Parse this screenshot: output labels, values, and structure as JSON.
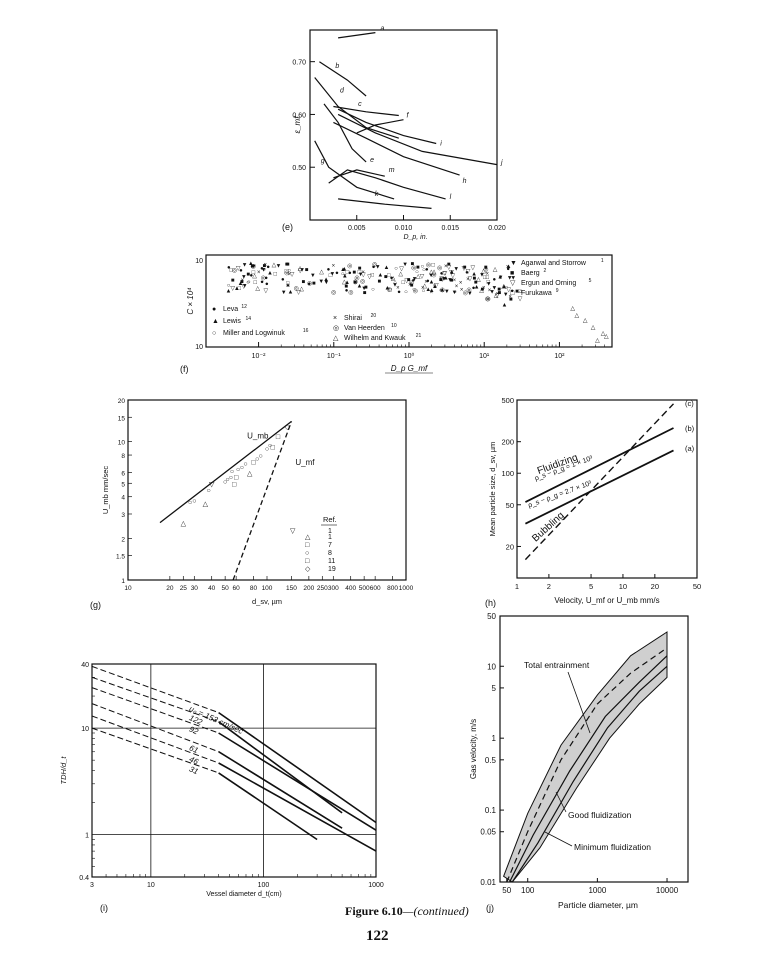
{
  "figure_caption": {
    "label": "Figure 6.10",
    "suffix": "—(continued)"
  },
  "page_number": "122",
  "chart_data": [
    {
      "id": "e",
      "panel_label": "(e)",
      "type": "line",
      "ylabel": "ε_mf",
      "xlabel": "D_p, in.",
      "xlim": [
        0,
        0.02
      ],
      "ylim": [
        0.4,
        0.76
      ],
      "xticks": [
        "0.005",
        "0.010",
        "0.015",
        "0.020"
      ],
      "yticks": [
        "0.50",
        "0.60",
        "0.70"
      ],
      "series": [
        {
          "name": "a",
          "points": [
            [
              0.003,
              0.745
            ],
            [
              0.007,
              0.755
            ]
          ]
        },
        {
          "name": "b",
          "points": [
            [
              0.001,
              0.7
            ],
            [
              0.004,
              0.665
            ],
            [
              0.006,
              0.635
            ]
          ]
        },
        {
          "name": "c",
          "points": [
            [
              0.0025,
              0.615
            ],
            [
              0.006,
              0.605
            ],
            [
              0.0095,
              0.598
            ]
          ]
        },
        {
          "name": "d",
          "points": [
            [
              0.0005,
              0.67
            ],
            [
              0.003,
              0.615
            ],
            [
              0.006,
              0.575
            ],
            [
              0.0095,
              0.555
            ]
          ]
        },
        {
          "name": "e",
          "points": [
            [
              0.0015,
              0.62
            ],
            [
              0.003,
              0.585
            ],
            [
              0.0045,
              0.535
            ],
            [
              0.006,
              0.51
            ]
          ]
        },
        {
          "name": "f",
          "points": [
            [
              0.005,
              0.565
            ],
            [
              0.007,
              0.58
            ],
            [
              0.01,
              0.59
            ]
          ]
        },
        {
          "name": "g",
          "points": [
            [
              0.0005,
              0.55
            ],
            [
              0.002,
              0.5
            ],
            [
              0.005,
              0.462
            ],
            [
              0.009,
              0.44
            ]
          ]
        },
        {
          "name": "h",
          "points": [
            [
              0.0025,
              0.585
            ],
            [
              0.006,
              0.555
            ],
            [
              0.01,
              0.52
            ],
            [
              0.016,
              0.485
            ]
          ]
        },
        {
          "name": "i",
          "points": [
            [
              0.003,
              0.61
            ],
            [
              0.006,
              0.585
            ],
            [
              0.01,
              0.56
            ],
            [
              0.0135,
              0.545
            ]
          ]
        },
        {
          "name": "j",
          "points": [
            [
              0.003,
              0.6
            ],
            [
              0.007,
              0.565
            ],
            [
              0.012,
              0.53
            ],
            [
              0.02,
              0.505
            ]
          ]
        },
        {
          "name": "k",
          "points": [
            [
              0.003,
              0.44
            ],
            [
              0.008,
              0.43
            ],
            [
              0.013,
              0.422
            ]
          ]
        },
        {
          "name": "l",
          "points": [
            [
              0.002,
              0.47
            ],
            [
              0.004,
              0.495
            ],
            [
              0.007,
              0.48
            ],
            [
              0.01,
              0.462
            ],
            [
              0.0145,
              0.44
            ]
          ]
        },
        {
          "name": "m",
          "points": [
            [
              0.0025,
              0.48
            ],
            [
              0.005,
              0.495
            ],
            [
              0.008,
              0.483
            ]
          ]
        }
      ]
    },
    {
      "id": "f",
      "panel_label": "(f)",
      "type": "scatter",
      "ylabel": "C × 10⁴",
      "xlabel": "D_p G_mf",
      "xscale": "log",
      "xlim": [
        0.002,
        500
      ],
      "ylim": [
        1,
        10
      ],
      "xticks": [
        "10⁻²",
        "10⁻¹",
        "10⁰",
        "10¹",
        "10²"
      ],
      "yticks": [
        "10",
        "10"
      ],
      "legend": [
        {
          "symbol": "●",
          "text": "Leva",
          "ref": "12"
        },
        {
          "symbol": "▲",
          "text": "Lewis",
          "ref": "14"
        },
        {
          "symbol": "○",
          "text": "Miller and Logwinuk",
          "ref": "16"
        },
        {
          "symbol": "×",
          "text": "Shirai",
          "ref": "20"
        },
        {
          "symbol": "◎",
          "text": "Van Heerden",
          "ref": "10"
        },
        {
          "symbol": "△",
          "text": "Wilhelm and Kwauk",
          "ref": "21"
        },
        {
          "symbol": "▼",
          "text": "Agarwal and Storrow",
          "ref": "1"
        },
        {
          "symbol": "■",
          "text": "Baerg",
          "ref": "2"
        },
        {
          "symbol": "▽",
          "text": "Ergun and Orning",
          "ref": "5"
        },
        {
          "symbol": "□",
          "text": "Furukawa",
          "ref": "9"
        }
      ]
    },
    {
      "id": "g",
      "panel_label": "(g)",
      "type": "scatter",
      "ylabel": "U_mb mm/sec",
      "xlabel": "d_sv, µm",
      "xscale": "log",
      "yscale": "log",
      "xlim": [
        10,
        1000
      ],
      "ylim": [
        1,
        20
      ],
      "xticks": [
        "10",
        "20",
        "25",
        "30",
        "40",
        "50",
        "60",
        "80",
        "100",
        "150",
        "200",
        "250",
        "300",
        "400",
        "500",
        "600",
        "800",
        "1000"
      ],
      "yticks": [
        "1",
        "1.5",
        "2",
        "3",
        "4",
        "5",
        "6",
        "8",
        "10",
        "15",
        "20"
      ],
      "line_labels": [
        "U_mb",
        "U_mf"
      ],
      "lines": {
        "U_mb": [
          [
            17,
            2.6
          ],
          [
            150,
            14
          ]
        ],
        "U_mf": [
          [
            57,
            1
          ],
          [
            150,
            14
          ]
        ]
      },
      "legend_title": "Ref.",
      "legend": [
        {
          "symbol": "▽",
          "ref": "1"
        },
        {
          "symbol": "△",
          "ref": "1"
        },
        {
          "symbol": "□",
          "ref": "7"
        },
        {
          "symbol": "○",
          "ref": "8"
        },
        {
          "symbol": "□",
          "ref": "11"
        },
        {
          "symbol": "◇",
          "ref": "19"
        }
      ],
      "points": [
        {
          "x": 25,
          "y": 2.6,
          "s": "△"
        },
        {
          "x": 28,
          "y": 3.7,
          "s": "○"
        },
        {
          "x": 30,
          "y": 3.8,
          "s": "○"
        },
        {
          "x": 36,
          "y": 3.6,
          "s": "△"
        },
        {
          "x": 38,
          "y": 4.5,
          "s": "○"
        },
        {
          "x": 40,
          "y": 5,
          "s": "▽"
        },
        {
          "x": 50,
          "y": 5.2,
          "s": "○"
        },
        {
          "x": 52,
          "y": 5.4,
          "s": "○"
        },
        {
          "x": 55,
          "y": 5.6,
          "s": "○"
        },
        {
          "x": 56,
          "y": 6.2,
          "s": "○"
        },
        {
          "x": 58,
          "y": 5,
          "s": "□"
        },
        {
          "x": 60,
          "y": 5.6,
          "s": "□"
        },
        {
          "x": 62,
          "y": 6.4,
          "s": "○"
        },
        {
          "x": 66,
          "y": 6.6,
          "s": "○"
        },
        {
          "x": 70,
          "y": 7,
          "s": "○"
        },
        {
          "x": 75,
          "y": 6,
          "s": "△"
        },
        {
          "x": 80,
          "y": 7.2,
          "s": "□"
        },
        {
          "x": 85,
          "y": 7.6,
          "s": "○"
        },
        {
          "x": 90,
          "y": 8,
          "s": "○"
        },
        {
          "x": 100,
          "y": 9,
          "s": "○"
        },
        {
          "x": 105,
          "y": 9.5,
          "s": "○"
        },
        {
          "x": 110,
          "y": 9.2,
          "s": "□"
        },
        {
          "x": 120,
          "y": 11,
          "s": "□"
        },
        {
          "x": 140,
          "y": 13,
          "s": "◇"
        }
      ]
    },
    {
      "id": "h",
      "panel_label": "(h)",
      "type": "line",
      "ylabel": "Mean particle size, d_sv, µm",
      "xlabel": "Velocity, U_mf or U_mb mm/s",
      "xscale": "log",
      "yscale": "log",
      "xlim": [
        1,
        50
      ],
      "ylim": [
        10,
        500
      ],
      "xticks": [
        "1",
        "2",
        "5",
        "10",
        "20",
        "50"
      ],
      "yticks": [
        "20",
        "50",
        "100",
        "200",
        "500"
      ],
      "annotations": [
        "Fluidizing",
        "ρ_s − ρ_g = 1 × 10³",
        "ρ_s − ρ_g = 2.7 × 10³",
        "Bubbling"
      ],
      "series": [
        {
          "name": "(a)",
          "points": [
            [
              1.2,
              33
            ],
            [
              30,
              165
            ]
          ]
        },
        {
          "name": "(b)",
          "points": [
            [
              1.2,
              53
            ],
            [
              30,
              270
            ]
          ]
        },
        {
          "name": "(c)",
          "points": [
            [
              1.2,
              15
            ],
            [
              30,
              460
            ]
          ]
        }
      ]
    },
    {
      "id": "i",
      "panel_label": "(i)",
      "type": "line",
      "ylabel": "TDH/d_t",
      "xlabel": "Vessel diameter d_t(cm)",
      "xscale": "log",
      "yscale": "log",
      "xlim": [
        3,
        1000
      ],
      "ylim": [
        0.4,
        40
      ],
      "xticks": [
        "3",
        "10",
        "100",
        "1000"
      ],
      "yticks": [
        "0.4",
        "1",
        "10",
        "40"
      ],
      "series": [
        {
          "name": "u₀ = 153 cm/sec",
          "value": 153,
          "points": [
            [
              3,
              38
            ],
            [
              40,
              14
            ],
            [
              1000,
              1.3
            ]
          ]
        },
        {
          "name": "122",
          "value": 122,
          "points": [
            [
              3,
              30
            ],
            [
              40,
              11.5
            ],
            [
              500,
              1.6
            ]
          ]
        },
        {
          "name": "92",
          "value": 92,
          "points": [
            [
              3,
              24
            ],
            [
              40,
              9
            ],
            [
              1000,
              1.1
            ]
          ]
        },
        {
          "name": "61",
          "value": 61,
          "points": [
            [
              3,
              17
            ],
            [
              40,
              6
            ],
            [
              500,
              1.15
            ]
          ]
        },
        {
          "name": "46",
          "value": 46,
          "points": [
            [
              3,
              13
            ],
            [
              40,
              4.7
            ],
            [
              1000,
              0.7
            ]
          ]
        },
        {
          "name": "31",
          "value": 31,
          "points": [
            [
              3,
              10
            ],
            [
              40,
              3.8
            ],
            [
              300,
              0.9
            ]
          ]
        }
      ]
    },
    {
      "id": "j",
      "panel_label": "(j)",
      "type": "area",
      "ylabel": "Gas velocity, m/s",
      "xlabel": "Particle diameter, µm",
      "xscale": "log",
      "yscale": "log",
      "xlim": [
        40,
        20000
      ],
      "ylim": [
        0.01,
        50
      ],
      "xticks": [
        "50",
        "100",
        "1000",
        "10000"
      ],
      "yticks": [
        "0.01",
        "0.05",
        "0.1",
        "0.5",
        "1",
        "5",
        "10",
        "50"
      ],
      "annotations": [
        "Total entrainment",
        "Good fluidization",
        "Minimum fluidization"
      ],
      "band_upper": [
        [
          45,
          0.012
        ],
        [
          100,
          0.09
        ],
        [
          300,
          0.8
        ],
        [
          1000,
          4
        ],
        [
          3000,
          14
        ],
        [
          10000,
          30
        ]
      ],
      "band_lower": [
        [
          60,
          0.01
        ],
        [
          150,
          0.03
        ],
        [
          500,
          0.2
        ],
        [
          1500,
          1
        ],
        [
          4000,
          3
        ],
        [
          10000,
          7
        ]
      ],
      "good_line": [
        [
          55,
          0.01
        ],
        [
          120,
          0.045
        ],
        [
          400,
          0.35
        ],
        [
          1300,
          2
        ],
        [
          4000,
          6
        ],
        [
          10000,
          14
        ]
      ],
      "dashed_line": [
        [
          50,
          0.01
        ],
        [
          100,
          0.05
        ],
        [
          300,
          0.5
        ],
        [
          1000,
          3
        ],
        [
          3000,
          8
        ],
        [
          10000,
          18
        ]
      ],
      "min_line": [
        [
          60,
          0.01
        ],
        [
          140,
          0.035
        ],
        [
          450,
          0.25
        ],
        [
          1400,
          1.4
        ],
        [
          4000,
          4.5
        ],
        [
          10000,
          10
        ]
      ]
    }
  ]
}
